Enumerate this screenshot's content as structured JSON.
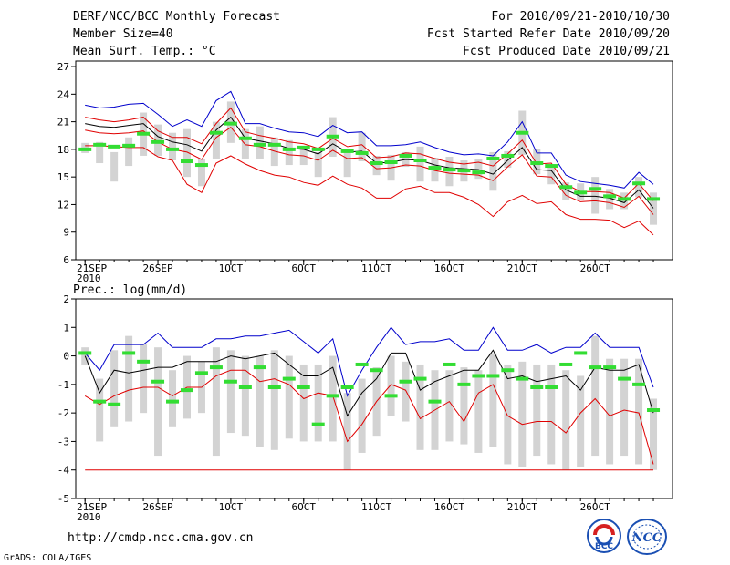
{
  "header": {
    "title": "DERF/NCC/BCC Monthly Forecast",
    "member_size": "Member Size=40",
    "forecast_period": "For 2010/09/21-2010/10/30",
    "started_refer_date": "Fcst Started Refer Date 2010/09/20",
    "produced_date": "Fcst Produced Date 2010/09/21"
  },
  "footer": {
    "url": "http://cmdp.ncc.cma.gov.cn",
    "credit": "GrADS: COLA/IGES",
    "logo_left_text": "BCC",
    "logo_right_text": "NCC"
  },
  "colors": {
    "max_line": "#0000cc",
    "min_line": "#e00000",
    "mean_line": "#000000",
    "observed_marker": "#33dd33",
    "spread_box": "#d3d3d3"
  },
  "chart_data": [
    {
      "type": "line",
      "title": "Mean Surf. Temp.: °C",
      "ylim": [
        6,
        27.6
      ],
      "yticks": [
        6,
        9,
        12,
        15,
        18,
        21,
        24,
        27
      ],
      "xticks": [
        {
          "day": 1,
          "label": "21SEP"
        },
        {
          "day": 6,
          "label": "26SEP"
        },
        {
          "day": 11,
          "label": "1OCT"
        },
        {
          "day": 16,
          "label": "6OCT"
        },
        {
          "day": 21,
          "label": "11OCT"
        },
        {
          "day": 26,
          "label": "16OCT"
        },
        {
          "day": 31,
          "label": "21OCT"
        },
        {
          "day": 36,
          "label": "26OCT"
        }
      ],
      "year_label": "2010",
      "days": [
        1,
        2,
        3,
        4,
        5,
        6,
        7,
        8,
        9,
        10,
        11,
        12,
        13,
        14,
        15,
        16,
        17,
        18,
        19,
        20,
        21,
        22,
        23,
        24,
        25,
        26,
        27,
        28,
        29,
        30,
        31,
        32,
        33,
        34,
        35,
        36,
        37,
        38,
        39,
        40
      ],
      "series": [
        {
          "name": "max",
          "values": [
            22.8,
            22.5,
            22.6,
            22.9,
            23.0,
            21.8,
            20.5,
            21.2,
            20.5,
            23.3,
            24.3,
            20.8,
            20.8,
            20.3,
            19.9,
            19.8,
            19.4,
            20.6,
            19.8,
            19.9,
            18.4,
            18.4,
            18.5,
            18.8,
            18.2,
            17.7,
            17.4,
            17.5,
            17.3,
            18.8,
            21.0,
            17.6,
            17.6,
            15.2,
            14.5,
            14.3,
            14.1,
            13.8,
            15.5,
            14.2
          ]
        },
        {
          "name": "p90",
          "values": [
            21.5,
            21.2,
            21.0,
            21.2,
            21.5,
            20.0,
            19.3,
            19.3,
            18.6,
            20.8,
            22.5,
            19.9,
            19.5,
            19.2,
            18.8,
            18.6,
            18.1,
            19.2,
            18.3,
            18.5,
            17.1,
            17.2,
            17.6,
            17.5,
            17.0,
            16.6,
            16.4,
            16.6,
            16.2,
            17.5,
            19.0,
            16.4,
            16.5,
            14.2,
            13.4,
            13.4,
            13.3,
            12.7,
            14.3,
            12.4
          ]
        },
        {
          "name": "mean",
          "values": [
            20.8,
            20.5,
            20.4,
            20.6,
            20.8,
            19.4,
            18.8,
            18.5,
            17.8,
            20.1,
            21.5,
            19.2,
            18.9,
            18.6,
            18.1,
            18.0,
            17.5,
            18.6,
            17.7,
            17.8,
            16.5,
            16.6,
            16.9,
            16.8,
            16.3,
            16.0,
            15.9,
            15.8,
            15.3,
            16.8,
            18.2,
            15.8,
            15.7,
            13.6,
            12.9,
            12.9,
            12.7,
            12.2,
            13.6,
            11.6
          ]
        },
        {
          "name": "p10",
          "values": [
            20.1,
            19.8,
            19.7,
            19.8,
            20.0,
            18.8,
            18.0,
            17.7,
            16.9,
            19.3,
            20.4,
            18.5,
            18.3,
            17.8,
            17.4,
            17.3,
            16.8,
            17.9,
            17.0,
            17.1,
            15.9,
            16.0,
            16.3,
            16.2,
            15.7,
            15.4,
            15.3,
            15.2,
            14.6,
            16.1,
            17.4,
            15.1,
            15.0,
            13.0,
            12.3,
            12.4,
            12.2,
            11.7,
            12.9,
            10.9
          ]
        },
        {
          "name": "min",
          "values": [
            18.4,
            18.4,
            18.3,
            18.2,
            18.2,
            17.2,
            16.8,
            14.2,
            13.3,
            16.5,
            17.3,
            16.4,
            15.7,
            15.2,
            15.0,
            14.4,
            14.1,
            15.1,
            14.2,
            13.8,
            12.7,
            12.7,
            13.7,
            14.0,
            13.3,
            13.3,
            12.8,
            12.0,
            10.7,
            12.3,
            13.0,
            12.1,
            12.3,
            10.9,
            10.4,
            10.4,
            10.3,
            9.5,
            10.2,
            8.7
          ]
        }
      ],
      "box_low": [
        17.6,
        16.5,
        14.5,
        16.2,
        17.3,
        17.3,
        16.8,
        15.0,
        14.0,
        17.0,
        18.7,
        17.0,
        17.0,
        16.2,
        16.3,
        16.3,
        15.0,
        17.2,
        15.0,
        16.7,
        15.2,
        14.6,
        16.1,
        14.5,
        14.5,
        14.0,
        14.5,
        14.8,
        13.5,
        16.0,
        17.4,
        15.3,
        14.2,
        12.5,
        12.5,
        11.0,
        11.5,
        11.5,
        12.8,
        9.8
      ],
      "box_high": [
        18.7,
        18.8,
        17.7,
        19.3,
        22.0,
        20.7,
        19.8,
        20.2,
        17.0,
        21.0,
        23.2,
        20.2,
        20.5,
        19.3,
        19.0,
        18.3,
        17.7,
        21.5,
        18.0,
        19.8,
        17.3,
        17.4,
        17.7,
        18.3,
        17.1,
        17.2,
        16.8,
        17.0,
        17.7,
        17.8,
        22.2,
        18.0,
        16.0,
        14.4,
        14.3,
        15.0,
        13.7,
        13.3,
        15.0,
        13.3
      ],
      "observed": [
        18.0,
        18.5,
        18.3,
        18.4,
        19.7,
        18.8,
        18.0,
        16.7,
        16.3,
        19.8,
        20.8,
        19.2,
        18.5,
        18.5,
        18.0,
        18.2,
        18.0,
        19.4,
        17.8,
        17.6,
        16.5,
        16.6,
        17.3,
        16.8,
        16.0,
        15.8,
        15.7,
        15.5,
        17.0,
        17.3,
        19.8,
        16.5,
        16.2,
        13.9,
        13.3,
        13.7,
        12.9,
        12.6,
        14.3,
        12.6
      ]
    },
    {
      "type": "line",
      "title": "Prec.: log(mm/d)",
      "ylim": [
        -5,
        2
      ],
      "yticks": [
        -5,
        -4,
        -3,
        -2,
        -1,
        0,
        1,
        2
      ],
      "xticks": [
        {
          "day": 1,
          "label": "21SEP"
        },
        {
          "day": 6,
          "label": "26SEP"
        },
        {
          "day": 11,
          "label": "1OCT"
        },
        {
          "day": 16,
          "label": "6OCT"
        },
        {
          "day": 21,
          "label": "11OCT"
        },
        {
          "day": 26,
          "label": "16OCT"
        },
        {
          "day": 31,
          "label": "21OCT"
        },
        {
          "day": 36,
          "label": "26OCT"
        }
      ],
      "year_label": "2010",
      "days": [
        1,
        2,
        3,
        4,
        5,
        6,
        7,
        8,
        9,
        10,
        11,
        12,
        13,
        14,
        15,
        16,
        17,
        18,
        19,
        20,
        21,
        22,
        23,
        24,
        25,
        26,
        27,
        28,
        29,
        30,
        31,
        32,
        33,
        34,
        35,
        36,
        37,
        38,
        39,
        40
      ],
      "series": [
        {
          "name": "max",
          "values": [
            0.1,
            -0.5,
            0.4,
            0.4,
            0.4,
            0.8,
            0.3,
            0.3,
            0.3,
            0.6,
            0.6,
            0.7,
            0.7,
            0.8,
            0.9,
            0.5,
            0.1,
            0.6,
            -1.4,
            -0.5,
            0.3,
            1.0,
            0.4,
            0.5,
            0.5,
            0.6,
            0.2,
            0.2,
            1.0,
            0.2,
            0.2,
            0.4,
            0.1,
            0.3,
            0.3,
            0.8,
            0.3,
            0.3,
            0.3,
            -1.1
          ]
        },
        {
          "name": "mean",
          "values": [
            0.0,
            -1.3,
            -0.5,
            -0.6,
            -0.5,
            -0.4,
            -0.4,
            -0.2,
            -0.2,
            -0.2,
            0.0,
            -0.1,
            0.0,
            0.1,
            -0.3,
            -0.7,
            -0.7,
            -0.4,
            -2.1,
            -1.3,
            -0.8,
            0.1,
            0.1,
            -1.2,
            -0.9,
            -0.7,
            -0.5,
            -0.5,
            0.2,
            -0.8,
            -0.7,
            -0.9,
            -0.8,
            -0.7,
            -1.2,
            -0.4,
            -0.5,
            -0.5,
            -0.3,
            -2.0
          ]
        },
        {
          "name": "min",
          "values": [
            -1.4,
            -1.7,
            -1.4,
            -1.2,
            -1.1,
            -1.1,
            -1.4,
            -1.1,
            -1.1,
            -0.7,
            -0.5,
            -0.5,
            -0.9,
            -0.8,
            -1.0,
            -1.5,
            -1.3,
            -1.4,
            -3.0,
            -2.4,
            -1.6,
            -1.0,
            -1.2,
            -2.2,
            -1.9,
            -1.6,
            -2.3,
            -1.3,
            -1.0,
            -2.1,
            -2.4,
            -2.3,
            -2.3,
            -2.7,
            -2.0,
            -1.5,
            -2.1,
            -1.9,
            -2.0,
            -3.8
          ]
        },
        {
          "name": "floor",
          "values": [
            -4,
            -4,
            -4,
            -4,
            -4,
            -4,
            -4,
            -4,
            -4,
            -4,
            -4,
            -4,
            -4,
            -4,
            -4,
            -4,
            -4,
            -4,
            -4,
            -4,
            -4,
            -4,
            -4,
            -4,
            -4,
            -4,
            -4,
            -4,
            -4,
            -4,
            -4,
            -4,
            -4,
            -4,
            -4,
            -4,
            -4,
            -4,
            -4,
            -4
          ]
        }
      ],
      "box_low": [
        -0.3,
        -3.0,
        -2.5,
        -2.3,
        -2.0,
        -3.5,
        -2.5,
        -2.2,
        -2.0,
        -3.5,
        -2.7,
        -2.8,
        -3.2,
        -3.3,
        -2.9,
        -3.0,
        -3.0,
        -3.0,
        -4.0,
        -3.4,
        -2.8,
        -2.1,
        -2.3,
        -3.3,
        -3.3,
        -3.0,
        -3.1,
        -3.4,
        -3.2,
        -3.8,
        -3.9,
        -3.5,
        -3.8,
        -4.0,
        -3.9,
        -3.5,
        -3.8,
        -3.5,
        -3.8,
        -4.0
      ],
      "box_high": [
        0.3,
        -0.8,
        0.2,
        0.7,
        0.4,
        0.3,
        -0.5,
        0.0,
        -0.2,
        0.3,
        0.2,
        0.0,
        0.0,
        0.2,
        0.0,
        -0.3,
        -0.3,
        0.0,
        -1.3,
        -0.8,
        -0.4,
        0.0,
        -0.2,
        -0.3,
        -0.5,
        -0.5,
        -0.4,
        -0.5,
        0.1,
        -0.3,
        -0.2,
        -0.3,
        -0.3,
        -0.5,
        -0.7,
        0.7,
        -0.1,
        -0.1,
        -0.1,
        -1.5
      ],
      "observed": [
        0.1,
        -1.6,
        -1.7,
        0.1,
        -0.2,
        -0.9,
        -1.6,
        -1.2,
        -0.6,
        -0.4,
        -0.9,
        -1.1,
        -0.4,
        -1.1,
        -0.8,
        -1.1,
        -2.4,
        -1.4,
        -1.1,
        -0.3,
        -0.5,
        -1.4,
        -0.9,
        -0.8,
        -1.6,
        -0.3,
        -1.0,
        -0.7,
        -0.7,
        -0.5,
        -0.8,
        -1.1,
        -1.1,
        -0.3,
        0.1,
        -0.4,
        -0.4,
        -0.8,
        -1.0,
        -1.9
      ]
    }
  ]
}
